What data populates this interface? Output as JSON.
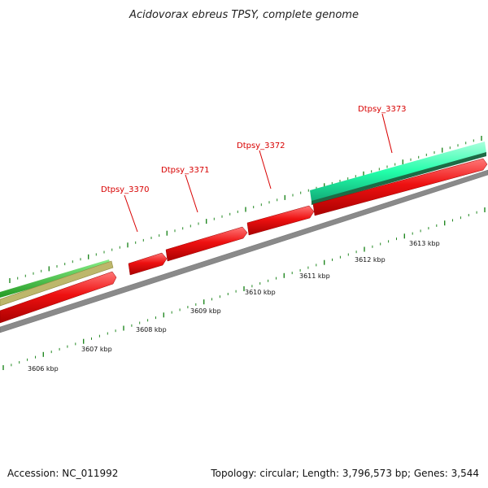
{
  "header": {
    "title": "Acidovorax ebreus TPSY, complete genome"
  },
  "footer": {
    "accession": "Accession: NC_011992",
    "summary": "Topology: circular; Length: 3,796,573 bp; Genes: 3,544"
  },
  "genes": {
    "labeled": [
      "Dtpsy_3370",
      "Dtpsy_3371",
      "Dtpsy_3372",
      "Dtpsy_3373"
    ]
  },
  "scale": {
    "kbp_labels": [
      "3606 kbp",
      "3607 kbp",
      "3608 kbp",
      "3609 kbp",
      "3610 kbp",
      "3611 kbp",
      "3612 kbp",
      "3613 kbp"
    ]
  },
  "colors": {
    "cds_forward": "#ee1111",
    "rna": "#22ffaa",
    "gc_green": "#33cc33",
    "gc_khaki": "#bdb76b",
    "backbone": "#8a8a8a",
    "ticks": "#228822",
    "gene_label": "#d80000"
  }
}
